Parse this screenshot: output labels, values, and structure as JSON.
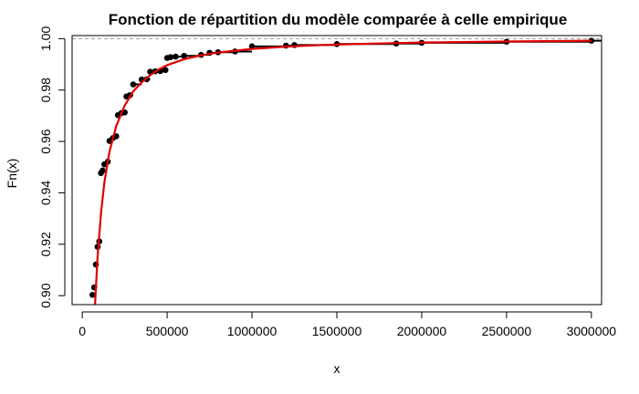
{
  "chart_data": {
    "type": "scatter",
    "title": "Fonction de répartition du modèle comparée à celle empirique",
    "xlabel": "x",
    "ylabel": "Fn(x)",
    "xlim": [
      -60000,
      3060000
    ],
    "ylim": [
      0.8965,
      1.0012
    ],
    "x_ticks": [
      0,
      500000,
      1000000,
      1500000,
      2000000,
      2500000,
      3000000
    ],
    "x_tick_labels": [
      "0",
      "500000",
      "1000000",
      "1500000",
      "2000000",
      "2500000",
      "3000000"
    ],
    "y_ticks": [
      0.9,
      0.92,
      0.94,
      0.96,
      0.98,
      1.0
    ],
    "y_tick_labels": [
      "0.90",
      "0.92",
      "0.94",
      "0.96",
      "0.98",
      "1.00"
    ],
    "grid": false,
    "reference_line": {
      "y": 1.0,
      "style": "dashed",
      "color": "#999999"
    },
    "series": [
      {
        "type": "points",
        "color": "#000000",
        "points": [
          [
            60000,
            0.9003
          ],
          [
            70000,
            0.9032
          ],
          [
            80000,
            0.9121
          ],
          [
            90000,
            0.919
          ],
          [
            100000,
            0.9211
          ],
          [
            110000,
            0.9477
          ],
          [
            120000,
            0.9487
          ],
          [
            130000,
            0.9511
          ],
          [
            150000,
            0.9521
          ],
          [
            160000,
            0.9602
          ],
          [
            180000,
            0.9613
          ],
          [
            200000,
            0.962
          ],
          [
            210000,
            0.9702
          ],
          [
            230000,
            0.971
          ],
          [
            250000,
            0.9713
          ],
          [
            260000,
            0.9775
          ],
          [
            280000,
            0.978
          ],
          [
            300000,
            0.9822
          ],
          [
            350000,
            0.9841
          ],
          [
            380000,
            0.9842
          ],
          [
            400000,
            0.9871
          ],
          [
            430000,
            0.9873
          ],
          [
            460000,
            0.9874
          ],
          [
            490000,
            0.9878
          ],
          [
            500000,
            0.9925
          ],
          [
            520000,
            0.9928
          ],
          [
            550000,
            0.993
          ],
          [
            600000,
            0.9933
          ],
          [
            700000,
            0.9937
          ],
          [
            750000,
            0.9945
          ],
          [
            800000,
            0.9947
          ],
          [
            900000,
            0.995
          ],
          [
            1000000,
            0.997
          ],
          [
            1200000,
            0.9973
          ],
          [
            1250000,
            0.9975
          ],
          [
            1500000,
            0.9979
          ],
          [
            1850000,
            0.9981
          ],
          [
            2000000,
            0.9984
          ],
          [
            2500000,
            0.9988
          ],
          [
            3000000,
            0.9992
          ]
        ]
      },
      {
        "type": "step",
        "color": "#000000"
      },
      {
        "type": "line",
        "color": "#e00000",
        "points": [
          [
            75000,
            0.8965
          ],
          [
            90000,
            0.915
          ],
          [
            110000,
            0.932
          ],
          [
            130000,
            0.944
          ],
          [
            160000,
            0.956
          ],
          [
            200000,
            0.966
          ],
          [
            250000,
            0.974
          ],
          [
            300000,
            0.9795
          ],
          [
            350000,
            0.983
          ],
          [
            400000,
            0.9858
          ],
          [
            450000,
            0.988
          ],
          [
            500000,
            0.9897
          ],
          [
            600000,
            0.992
          ],
          [
            700000,
            0.9935
          ],
          [
            800000,
            0.9946
          ],
          [
            900000,
            0.9953
          ],
          [
            1000000,
            0.996
          ],
          [
            1200000,
            0.9969
          ],
          [
            1400000,
            0.9975
          ],
          [
            1600000,
            0.9979
          ],
          [
            1800000,
            0.9982
          ],
          [
            2000000,
            0.9985
          ],
          [
            2500000,
            0.9989
          ],
          [
            3000000,
            0.9992
          ]
        ]
      }
    ]
  }
}
